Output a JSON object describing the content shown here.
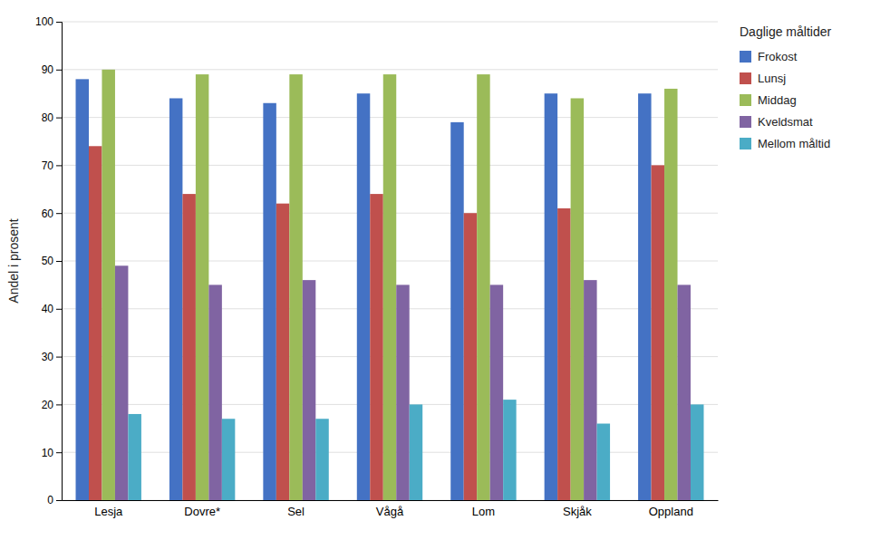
{
  "chart_data": {
    "type": "bar",
    "ylabel": "Andel i prosent",
    "categories": [
      "Lesja",
      "Dovre*",
      "Sel",
      "Vågå",
      "Lom",
      "Skjåk",
      "Oppland"
    ],
    "series": [
      {
        "name": "Frokost",
        "color": "#4472C4",
        "values": [
          88,
          84,
          83,
          85,
          79,
          85,
          85
        ]
      },
      {
        "name": "Lunsj",
        "color": "#C0504D",
        "values": [
          74,
          64,
          62,
          64,
          60,
          61,
          70
        ]
      },
      {
        "name": "Middag",
        "color": "#9BBB59",
        "values": [
          90,
          89,
          89,
          89,
          89,
          84,
          86
        ]
      },
      {
        "name": "Kveldsmat",
        "color": "#8064A2",
        "values": [
          49,
          45,
          46,
          45,
          45,
          46,
          45
        ]
      },
      {
        "name": "Mellom måltid",
        "color": "#4BACC6",
        "values": [
          18,
          17,
          17,
          20,
          21,
          16,
          20
        ]
      }
    ],
    "ylim": [
      0,
      100
    ],
    "yticks": [
      0,
      10,
      20,
      30,
      40,
      50,
      60,
      70,
      80,
      90,
      100
    ],
    "grid": true,
    "legend": "right",
    "legend_title": "Daglige måltider"
  }
}
